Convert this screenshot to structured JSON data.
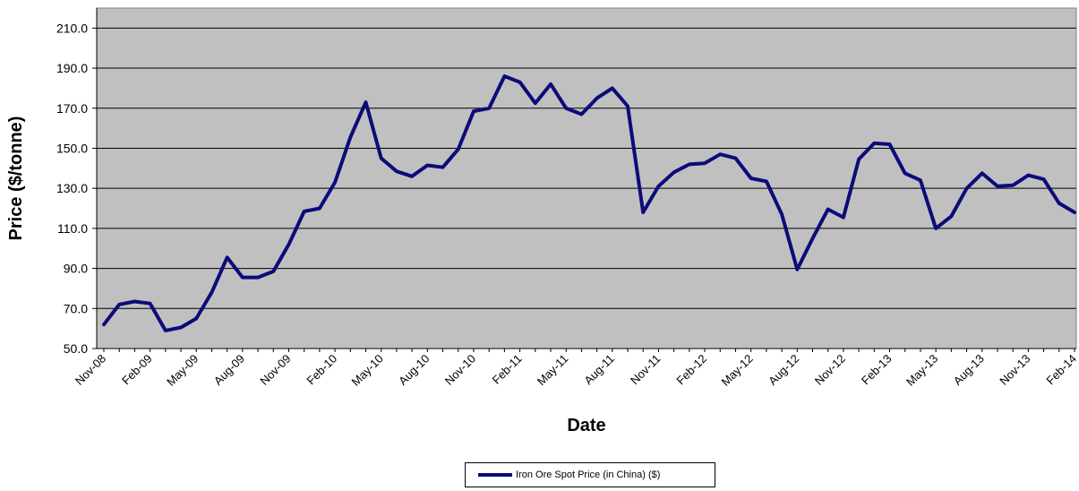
{
  "chart_data": {
    "type": "line",
    "title": "",
    "xlabel": "Date",
    "ylabel": "Price ($/tonne)",
    "ylim": [
      50,
      220
    ],
    "yticks": [
      "50.0",
      "70.0",
      "90.0",
      "110.0",
      "130.0",
      "150.0",
      "170.0",
      "190.0",
      "210.0"
    ],
    "ytick_values": [
      50,
      70,
      90,
      110,
      130,
      150,
      170,
      190,
      210
    ],
    "xtick_labels": [
      "Nov-08",
      "Feb-09",
      "May-09",
      "Aug-09",
      "Nov-09",
      "Feb-10",
      "May-10",
      "Aug-10",
      "Nov-10",
      "Feb-11",
      "May-11",
      "Aug-11",
      "Nov-11",
      "Feb-12",
      "May-12",
      "Aug-12",
      "Nov-12",
      "Feb-13",
      "May-13",
      "Aug-13",
      "Nov-13",
      "Feb-14"
    ],
    "grid": true,
    "legend_position": "bottom",
    "background_color": "#c0c0c0",
    "line_color": "#0b0b7a",
    "x": [
      "Nov-08",
      "Dec-08",
      "Jan-09",
      "Feb-09",
      "Mar-09",
      "Apr-09",
      "May-09",
      "Jun-09",
      "Jul-09",
      "Aug-09",
      "Sep-09",
      "Oct-09",
      "Nov-09",
      "Dec-09",
      "Jan-10",
      "Feb-10",
      "Mar-10",
      "Apr-10",
      "May-10",
      "Jun-10",
      "Jul-10",
      "Aug-10",
      "Sep-10",
      "Oct-10",
      "Nov-10",
      "Dec-10",
      "Jan-11",
      "Feb-11",
      "Mar-11",
      "Apr-11",
      "May-11",
      "Jun-11",
      "Jul-11",
      "Aug-11",
      "Sep-11",
      "Oct-11",
      "Nov-11",
      "Dec-11",
      "Jan-12",
      "Feb-12",
      "Mar-12",
      "Apr-12",
      "May-12",
      "Jun-12",
      "Jul-12",
      "Aug-12",
      "Sep-12",
      "Oct-12",
      "Nov-12",
      "Dec-12",
      "Jan-13",
      "Feb-13",
      "Mar-13",
      "Apr-13",
      "May-13",
      "Jun-13",
      "Jul-13",
      "Aug-13",
      "Sep-13",
      "Oct-13",
      "Nov-13",
      "Dec-13",
      "Jan-14",
      "Feb-14"
    ],
    "series": [
      {
        "name": "Iron Ore Spot Price (in China) ($)",
        "values": [
          62,
          72,
          73.5,
          72.5,
          59,
          60.5,
          65,
          78,
          95.5,
          85.5,
          85.5,
          88.5,
          102,
          118.5,
          120,
          133,
          155.5,
          173,
          145,
          138.5,
          136,
          141.5,
          140.5,
          149.5,
          168.5,
          170,
          186,
          183,
          172.5,
          182,
          170,
          167,
          175,
          180,
          171,
          118,
          131,
          138,
          142,
          142.5,
          147,
          145,
          135,
          133.5,
          117,
          89.5,
          105,
          119.5,
          115.5,
          144.5,
          152.5,
          152,
          137.5,
          134,
          110,
          116,
          130,
          137.5,
          131,
          131.5,
          136.5,
          134.5,
          122.5,
          118
        ]
      }
    ]
  }
}
